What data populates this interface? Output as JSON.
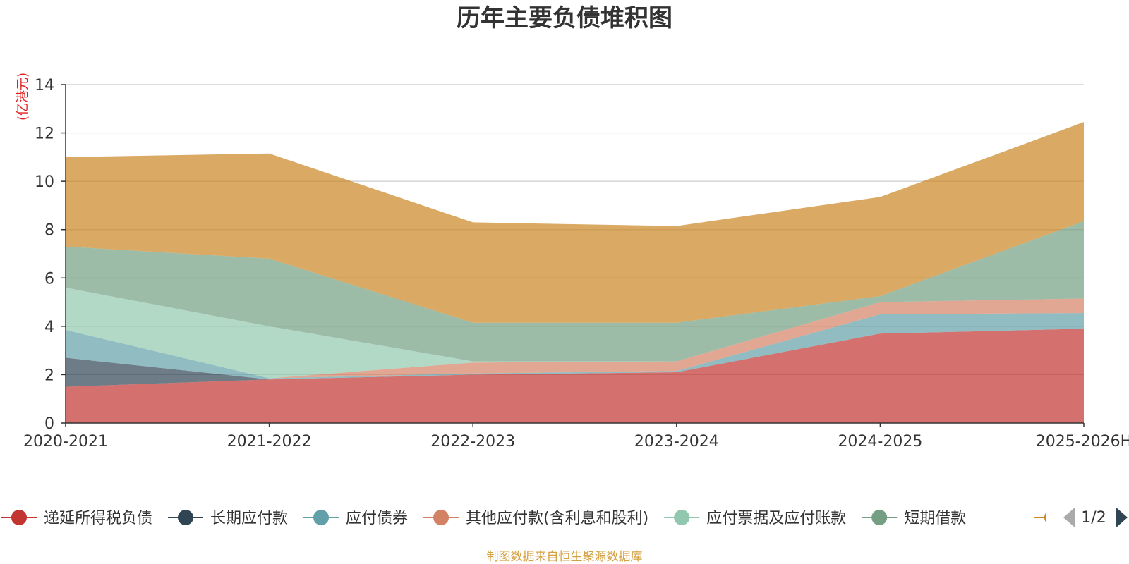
{
  "chart_data": {
    "type": "area",
    "stacked": true,
    "title": "历年主要负债堆积图",
    "unit_label": "(亿港元)",
    "categories": [
      "2020-2021",
      "2021-2022",
      "2022-2023",
      "2023-2024",
      "2024-2025",
      "2025-2026H"
    ],
    "ylim": [
      0,
      14
    ],
    "yticks": [
      0,
      2,
      4,
      6,
      8,
      10,
      12,
      14
    ],
    "grid": true,
    "legend_position": "bottom",
    "series": [
      {
        "name": "递延所得税负债",
        "color": "#c23531",
        "values": [
          1.5,
          1.8,
          2.0,
          2.1,
          3.7,
          3.9
        ]
      },
      {
        "name": "长期应付款",
        "color": "#2f4554",
        "values": [
          1.2,
          0.0,
          0.0,
          0.0,
          0.0,
          0.0
        ]
      },
      {
        "name": "应付债券",
        "color": "#61a0a8",
        "values": [
          1.15,
          0.05,
          0.05,
          0.05,
          0.8,
          0.65
        ]
      },
      {
        "name": "其他应付款(含利息和股利)",
        "color": "#d48265",
        "values": [
          0.0,
          0.0,
          0.45,
          0.4,
          0.5,
          0.6
        ]
      },
      {
        "name": "应付票据及应付账款",
        "color": "#91c7ae",
        "values": [
          1.75,
          2.15,
          0.05,
          0.0,
          0.0,
          0.0
        ]
      },
      {
        "name": "短期借款",
        "color": "#749f83",
        "values": [
          1.7,
          2.8,
          1.6,
          1.6,
          0.25,
          3.2
        ]
      },
      {
        "name": "",
        "color": "#ca8622",
        "values": [
          3.7,
          4.35,
          4.15,
          4.0,
          4.1,
          4.1
        ]
      }
    ]
  },
  "legend": {
    "items": [
      "递延所得税负债",
      "长期应付款",
      "应付债券",
      "其他应付款(含利息和股利)",
      "应付票据及应付账款",
      "短期借款"
    ],
    "page_indicator": "1/2"
  },
  "source_note": "制图数据来自恒生聚源数据库"
}
